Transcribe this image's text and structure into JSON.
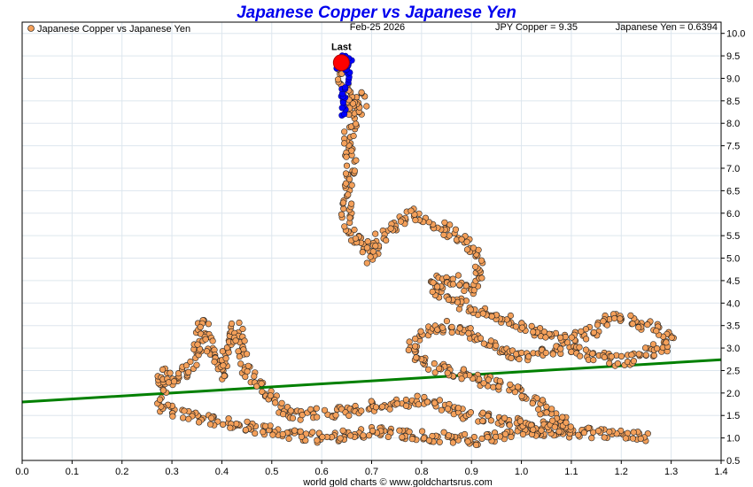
{
  "chart_data": {
    "type": "scatter",
    "title": "Japanese Copper vs Japanese Yen",
    "legend_label": "Japanese Copper vs Japanese Yen",
    "legend_placement": "top-left",
    "date": "Feb-25  2026",
    "jpy_copper_readout": "JPY Copper = 9.35",
    "yen_readout": "Japanese Yen = 0.6394",
    "footer": "world gold charts © www.goldchartsrus.com",
    "last_label": "Last",
    "last_point": {
      "x": 0.6394,
      "y": 9.35
    },
    "xlim": [
      0.0,
      1.4
    ],
    "ylim": [
      0.5,
      10.25
    ],
    "y_axis_side": "right",
    "grid": true,
    "x_ticks": [
      "0.0",
      "0.1",
      "0.2",
      "0.3",
      "0.4",
      "0.5",
      "0.6",
      "0.7",
      "0.8",
      "0.9",
      "1.0",
      "1.1",
      "1.2",
      "1.3",
      "1.4"
    ],
    "y_ticks": [
      "0.5",
      "1.0",
      "1.5",
      "2.0",
      "2.5",
      "3.0",
      "3.5",
      "4.0",
      "4.5",
      "5.0",
      "5.5",
      "6.0",
      "6.5",
      "7.0",
      "7.5",
      "8.0",
      "8.5",
      "9.0",
      "9.5",
      "10.0"
    ],
    "trendline": {
      "x": [
        0.0,
        1.4
      ],
      "y": [
        1.8,
        2.74
      ]
    },
    "colors": {
      "points": "#f4a05a",
      "recent": "#0000ff",
      "last": "#ff0000",
      "trend": "#008000",
      "title": "#0000ee"
    },
    "path": [
      [
        1.25,
        1.05
      ],
      [
        1.2,
        1.08
      ],
      [
        1.1,
        1.12
      ],
      [
        1.0,
        1.18
      ],
      [
        0.95,
        1.0
      ],
      [
        0.9,
        0.95
      ],
      [
        0.85,
        1.0
      ],
      [
        0.8,
        1.05
      ],
      [
        0.75,
        1.1
      ],
      [
        0.7,
        1.15
      ],
      [
        0.65,
        1.05
      ],
      [
        0.6,
        1.0
      ],
      [
        0.55,
        1.05
      ],
      [
        0.5,
        1.15
      ],
      [
        0.45,
        1.25
      ],
      [
        0.4,
        1.35
      ],
      [
        0.35,
        1.45
      ],
      [
        0.3,
        1.55
      ],
      [
        0.28,
        1.7
      ],
      [
        0.28,
        2.1
      ],
      [
        0.28,
        2.5
      ],
      [
        0.3,
        2.2
      ],
      [
        0.33,
        2.5
      ],
      [
        0.35,
        3.0
      ],
      [
        0.36,
        3.6
      ],
      [
        0.38,
        2.8
      ],
      [
        0.4,
        2.4
      ],
      [
        0.42,
        3.2
      ],
      [
        0.43,
        3.5
      ],
      [
        0.45,
        2.5
      ],
      [
        0.48,
        2.1
      ],
      [
        0.5,
        1.9
      ],
      [
        0.52,
        1.6
      ],
      [
        0.55,
        1.5
      ],
      [
        0.6,
        1.55
      ],
      [
        0.65,
        1.6
      ],
      [
        0.7,
        1.7
      ],
      [
        0.75,
        1.75
      ],
      [
        0.8,
        1.85
      ],
      [
        0.85,
        1.7
      ],
      [
        0.9,
        1.5
      ],
      [
        0.95,
        1.4
      ],
      [
        1.0,
        1.3
      ],
      [
        1.05,
        1.25
      ],
      [
        1.1,
        1.25
      ],
      [
        1.05,
        1.6
      ],
      [
        1.0,
        2.0
      ],
      [
        0.95,
        2.2
      ],
      [
        0.9,
        2.35
      ],
      [
        0.85,
        2.5
      ],
      [
        0.8,
        2.7
      ],
      [
        0.78,
        3.0
      ],
      [
        0.8,
        3.3
      ],
      [
        0.85,
        3.5
      ],
      [
        0.9,
        3.3
      ],
      [
        0.95,
        3.0
      ],
      [
        1.0,
        2.8
      ],
      [
        1.05,
        2.9
      ],
      [
        1.1,
        3.0
      ],
      [
        1.15,
        2.8
      ],
      [
        1.2,
        2.7
      ],
      [
        1.25,
        2.9
      ],
      [
        1.3,
        3.1
      ],
      [
        1.28,
        3.4
      ],
      [
        1.22,
        3.6
      ],
      [
        1.18,
        3.7
      ],
      [
        1.15,
        3.4
      ],
      [
        1.1,
        3.2
      ],
      [
        1.05,
        3.3
      ],
      [
        1.0,
        3.5
      ],
      [
        0.95,
        3.7
      ],
      [
        0.9,
        3.9
      ],
      [
        0.85,
        4.1
      ],
      [
        0.82,
        4.4
      ],
      [
        0.85,
        4.6
      ],
      [
        0.9,
        4.3
      ],
      [
        0.92,
        4.8
      ],
      [
        0.9,
        5.2
      ],
      [
        0.87,
        5.5
      ],
      [
        0.82,
        5.8
      ],
      [
        0.78,
        6.0
      ],
      [
        0.75,
        5.8
      ],
      [
        0.72,
        5.5
      ],
      [
        0.7,
        5.0
      ],
      [
        0.68,
        5.4
      ],
      [
        0.66,
        5.5
      ],
      [
        0.65,
        6.0
      ],
      [
        0.65,
        6.5
      ],
      [
        0.66,
        7.0
      ],
      [
        0.65,
        7.5
      ],
      [
        0.66,
        8.0
      ],
      [
        0.68,
        8.4
      ],
      [
        0.67,
        8.6
      ],
      [
        0.66,
        8.3
      ],
      [
        0.65,
        8.8
      ],
      [
        0.64,
        9.0
      ],
      [
        0.6394,
        9.35
      ]
    ],
    "recent_path": [
      [
        0.645,
        8.2
      ],
      [
        0.642,
        8.6
      ],
      [
        0.648,
        8.9
      ],
      [
        0.652,
        9.1
      ],
      [
        0.645,
        9.3
      ],
      [
        0.655,
        9.4
      ],
      [
        0.64,
        9.5
      ],
      [
        0.632,
        9.2
      ],
      [
        0.6394,
        9.35
      ]
    ]
  }
}
